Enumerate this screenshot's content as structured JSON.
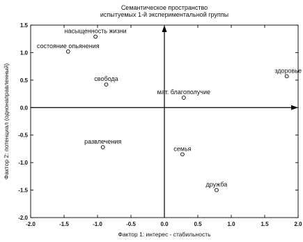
{
  "chart_data": {
    "type": "scatter",
    "title": [
      "Семантическое пространство",
      "испытуемых 1-й экспериментальной группы"
    ],
    "xlabel": "Фактор 1: интерес - стабильность",
    "ylabel": "Фактор 2: потенциал (однонаправленный)",
    "xlim": [
      -2.0,
      2.0
    ],
    "ylim": [
      -2.0,
      1.5
    ],
    "xticks": [
      "-2.0",
      "-1.5",
      "-1.0",
      "-0.5",
      "0.0",
      "0.5",
      "1.0",
      "1.5",
      "2.0"
    ],
    "yticks": [
      "1.5",
      "1.0",
      "0.5",
      "0.0",
      "-0.5",
      "-1.0",
      "-1.5",
      "-2.0"
    ],
    "grid": false,
    "points": [
      {
        "label": "насыщенность жизни",
        "x": -1.03,
        "y": 1.29
      },
      {
        "label": "состояние опьянения",
        "x": -1.44,
        "y": 1.02
      },
      {
        "label": "свобода",
        "x": -0.87,
        "y": 0.42
      },
      {
        "label": "мат. благополучие",
        "x": 0.29,
        "y": 0.18
      },
      {
        "label": "здоровье",
        "x": 1.83,
        "y": 0.57
      },
      {
        "label": "развлечения",
        "x": -0.92,
        "y": -0.72
      },
      {
        "label": "семья",
        "x": 0.27,
        "y": -0.85
      },
      {
        "label": "дружба",
        "x": 0.78,
        "y": -1.5
      }
    ]
  }
}
